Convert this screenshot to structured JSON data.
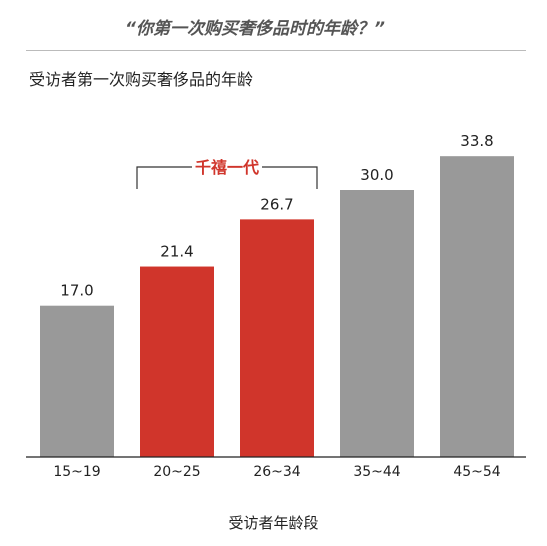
{
  "header": {
    "quote": "“你第一次购买奢侈品时的年龄？”",
    "subtitle": "受访者第一次购买奢侈品的年龄"
  },
  "chart_data": {
    "type": "bar",
    "categories": [
      "15~19",
      "20~25",
      "26~34",
      "35~44",
      "45~54"
    ],
    "values": [
      17.0,
      21.4,
      26.7,
      30.0,
      33.8
    ],
    "value_labels": [
      "17.0",
      "21.4",
      "26.7",
      "30.0",
      "33.8"
    ],
    "colors": [
      "#999999",
      "#d0352b",
      "#d0352b",
      "#999999",
      "#999999"
    ],
    "title": "受访者第一次购买奢侈品的年龄",
    "xlabel": "受访者年龄段",
    "ylabel": "",
    "ylim": [
      0,
      40
    ],
    "grid": false,
    "annotation": {
      "text": "千禧一代",
      "color": "#d0352b",
      "spans": [
        "20~25",
        "26~34"
      ]
    }
  }
}
